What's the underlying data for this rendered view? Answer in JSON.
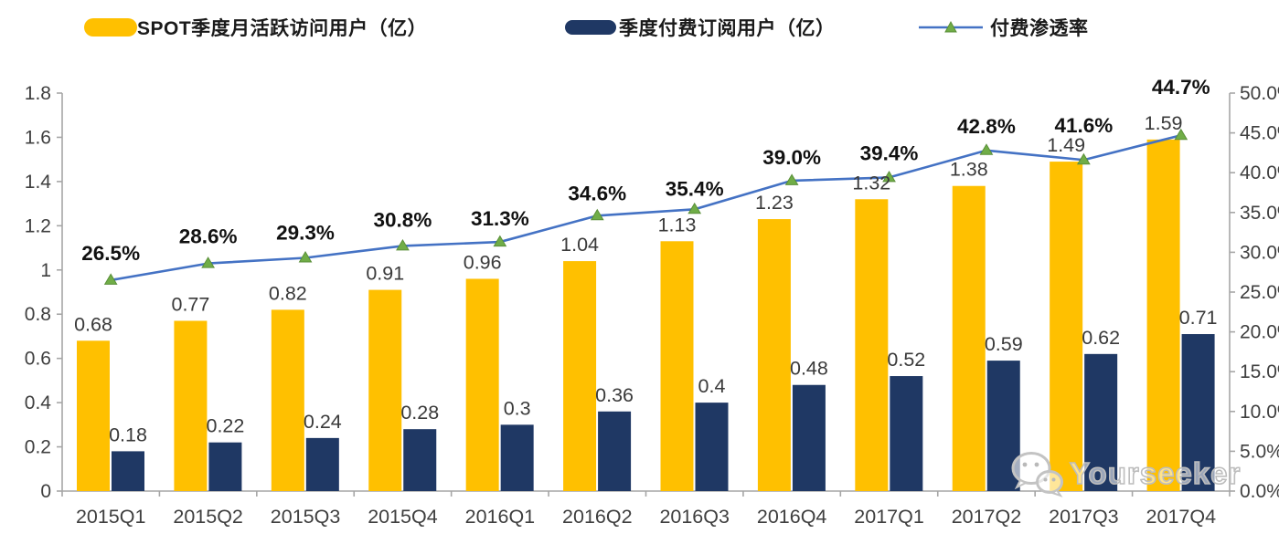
{
  "legend": {
    "items": [
      {
        "id": "mau",
        "label": "SPOT季度月活跃访问用户（亿）",
        "color": "#FFC000"
      },
      {
        "id": "subs",
        "label": "季度付费订阅用户（亿）",
        "color": "#1F3864"
      },
      {
        "id": "penetration",
        "label": "付费渗透率",
        "line_color": "#4472C4",
        "marker_color": "#70AD47"
      }
    ]
  },
  "watermark": {
    "text": "Yourseeker",
    "icon": "wechat-icon"
  },
  "chart_data": {
    "type": "bar+line",
    "title": "",
    "categories": [
      "2015Q1",
      "2015Q2",
      "2015Q3",
      "2015Q4",
      "2016Q1",
      "2016Q2",
      "2016Q3",
      "2016Q4",
      "2017Q1",
      "2017Q2",
      "2017Q3",
      "2017Q4"
    ],
    "series": [
      {
        "name": "SPOT季度月活跃访问用户（亿）",
        "type": "bar",
        "axis": "left",
        "color": "#FFC000",
        "values": [
          0.68,
          0.77,
          0.82,
          0.91,
          0.96,
          1.04,
          1.13,
          1.23,
          1.32,
          1.38,
          1.49,
          1.59
        ],
        "labels": [
          "0.68",
          "0.77",
          "0.82",
          "0.91",
          "0.96",
          "1.04",
          "1.13",
          "1.23",
          "1.32",
          "1.38",
          "1.49",
          "1.59"
        ]
      },
      {
        "name": "季度付费订阅用户（亿）",
        "type": "bar",
        "axis": "left",
        "color": "#1F3864",
        "values": [
          0.18,
          0.22,
          0.24,
          0.28,
          0.3,
          0.36,
          0.4,
          0.48,
          0.52,
          0.59,
          0.62,
          0.71
        ],
        "labels": [
          "0.18",
          "0.22",
          "0.24",
          "0.28",
          "0.3",
          "0.36",
          "0.4",
          "0.48",
          "0.52",
          "0.59",
          "0.62",
          "0.71"
        ]
      },
      {
        "name": "付费渗透率",
        "type": "line",
        "axis": "right",
        "color": "#4472C4",
        "marker": "triangle-up",
        "marker_color": "#70AD47",
        "values": [
          26.5,
          28.6,
          29.3,
          30.8,
          31.3,
          34.6,
          35.4,
          39.0,
          39.4,
          42.8,
          41.6,
          44.7
        ],
        "labels": [
          "26.5%",
          "28.6%",
          "29.3%",
          "30.8%",
          "31.3%",
          "34.6%",
          "35.4%",
          "39.0%",
          "39.4%",
          "42.8%",
          "41.6%",
          "44.7%"
        ]
      }
    ],
    "left_axis": {
      "min": 0,
      "max": 1.8,
      "step": 0.2,
      "ticks": [
        "0",
        "0.2",
        "0.4",
        "0.6",
        "0.8",
        "1",
        "1.2",
        "1.4",
        "1.6",
        "1.8"
      ]
    },
    "right_axis": {
      "min": 0,
      "max": 50,
      "step": 5,
      "ticks": [
        "0.0%",
        "5.0%",
        "10.0%",
        "15.0%",
        "20.0%",
        "25.0%",
        "30.0%",
        "35.0%",
        "40.0%",
        "45.0%",
        "50.0%"
      ]
    },
    "grid": false,
    "legend_position": "top",
    "colors": {
      "axis_line": "#A6A6A6",
      "tick_label": "#3F3F3F",
      "bar_label": "#3A3A3A",
      "pct_label": "#111111"
    }
  }
}
